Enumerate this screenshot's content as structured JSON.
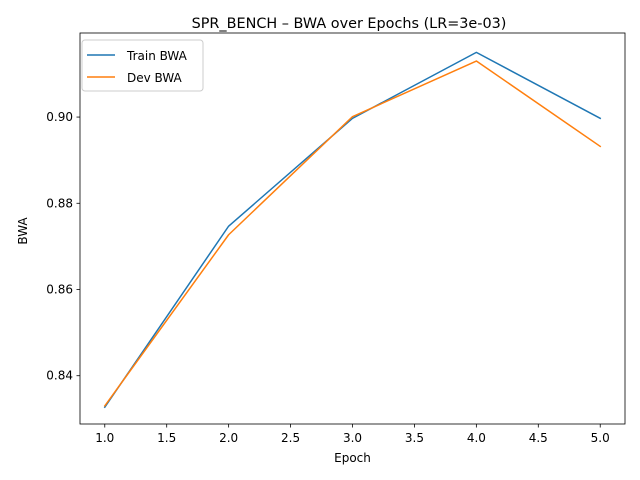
{
  "chart_data": {
    "type": "line",
    "title": "SPR_BENCH – BWA over Epochs (LR=3e-03)",
    "xlabel": "Epoch",
    "ylabel": "BWA",
    "xlim": [
      0.8,
      5.2
    ],
    "ylim": [
      0.8288,
      0.9195
    ],
    "xticks": [
      1.0,
      1.5,
      2.0,
      2.5,
      3.0,
      3.5,
      4.0,
      4.5,
      5.0
    ],
    "xtick_labels": [
      "1.0",
      "1.5",
      "2.0",
      "2.5",
      "3.0",
      "3.5",
      "4.0",
      "4.5",
      "5.0"
    ],
    "yticks": [
      0.84,
      0.86,
      0.88,
      0.9
    ],
    "ytick_labels": [
      "0.84",
      "0.86",
      "0.88",
      "0.90"
    ],
    "grid": false,
    "legend_position": "top-left",
    "x": [
      1,
      2,
      3,
      4,
      5
    ],
    "series": [
      {
        "name": "Train BWA",
        "color": "#1f77b4",
        "values": [
          0.8327,
          0.8747,
          0.8997,
          0.915,
          0.8997
        ]
      },
      {
        "name": "Dev BWA",
        "color": "#ff7f0e",
        "values": [
          0.833,
          0.8727,
          0.9001,
          0.913,
          0.8932
        ]
      }
    ]
  }
}
